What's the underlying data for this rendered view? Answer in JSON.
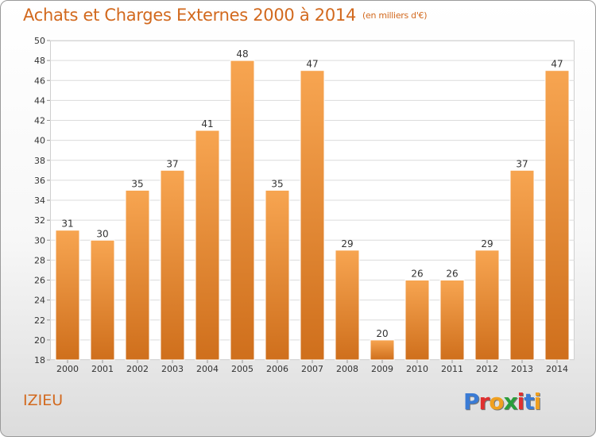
{
  "header": {
    "title": "Achats et Charges Externes 2000 à 2014",
    "unit": "(en milliers d'€)"
  },
  "footer": {
    "place": "IZIEU",
    "logo": "Proxiti",
    "logo_colors": [
      "#3a7bd5",
      "#e03030",
      "#f0a020",
      "#2a9d3a",
      "#e03030",
      "#3a7bd5",
      "#f0a020"
    ]
  },
  "colors": {
    "bar_top": "#f7a551",
    "bar_bottom": "#cf6f1c",
    "grid": "#dcdcdc",
    "text": "#333333"
  },
  "chart_data": {
    "type": "bar",
    "title": "Achats et Charges Externes 2000 à 2014",
    "subtitle": "(en milliers d'€)",
    "categories": [
      "2000",
      "2001",
      "2002",
      "2003",
      "2004",
      "2005",
      "2006",
      "2007",
      "2008",
      "2009",
      "2010",
      "2011",
      "2012",
      "2013",
      "2014"
    ],
    "values": [
      31,
      30,
      35,
      37,
      41,
      48,
      35,
      47,
      29,
      20,
      26,
      26,
      29,
      37,
      47
    ],
    "ylim": [
      18,
      50
    ],
    "yticks": [
      18,
      20,
      22,
      24,
      26,
      28,
      30,
      32,
      34,
      36,
      38,
      40,
      42,
      44,
      46,
      48,
      50
    ],
    "xlabel": "",
    "ylabel": "",
    "grid": true,
    "data_labels": true
  }
}
